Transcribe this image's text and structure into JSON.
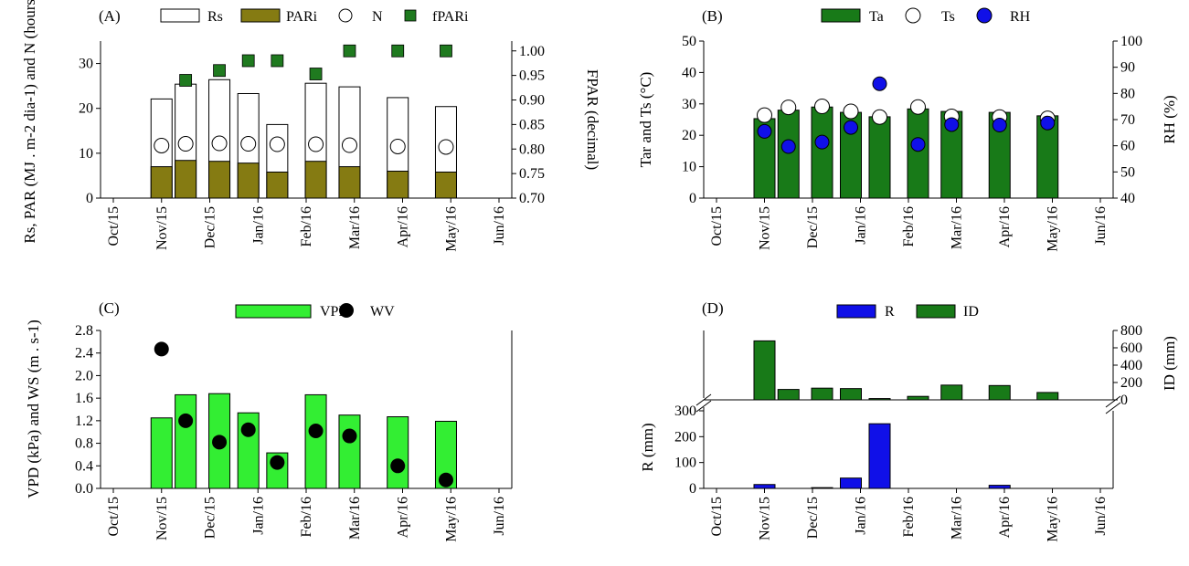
{
  "month_ticks": [
    "Oct/15",
    "Nov/15",
    "Dec/15",
    "Jan/16",
    "Feb/16",
    "Mar/16",
    "Apr/16",
    "May/16",
    "Jun/16"
  ],
  "chart_data": [
    {
      "panel": "(A)",
      "type": "bar",
      "categories": [
        "Oct/15",
        "Nov/15",
        "Dec/15",
        "Jan/16",
        "Feb/16",
        "Mar/16",
        "Apr/16",
        "May/16",
        "Jun/16"
      ],
      "ylabel_left": "Rs, PAR (MJ . m-2 dia-1) and N (hours)",
      "ylabel_right": "FPAR (decimal)",
      "ylim_left": [
        0,
        35
      ],
      "yticks_left": [
        "0",
        "10",
        "20",
        "30"
      ],
      "ylim_right": [
        0.7,
        1.02
      ],
      "yticks_right": [
        "0.70",
        "0.75",
        "0.80",
        "0.85",
        "0.90",
        "0.95",
        "1.00"
      ],
      "legend": [
        "Rs",
        "PARi",
        "N",
        "fPARi"
      ],
      "series": [
        {
          "name": "Rs",
          "kind": "bar",
          "color": "#ffffff",
          "x": [
            1.0,
            1.5,
            2.2,
            2.8,
            3.4,
            4.2,
            4.9,
            5.9,
            6.9
          ],
          "values": [
            22.1,
            25.4,
            26.4,
            23.3,
            16.4,
            25.6,
            24.8,
            22.4,
            20.4
          ]
        },
        {
          "name": "PARi",
          "kind": "bar",
          "color": "#857b12",
          "x": [
            1.0,
            1.5,
            2.2,
            2.8,
            3.4,
            4.2,
            4.9,
            5.9,
            6.9
          ],
          "values": [
            7.0,
            8.4,
            8.2,
            7.8,
            5.8,
            8.2,
            7.0,
            6.0,
            5.8
          ]
        },
        {
          "name": "N",
          "kind": "marker",
          "color": "#ffffff",
          "x": [
            1.0,
            1.5,
            2.2,
            2.8,
            3.4,
            4.2,
            4.9,
            5.9,
            6.9
          ],
          "values": [
            11.7,
            12.1,
            12.2,
            12.1,
            12.0,
            12.0,
            11.8,
            11.5,
            11.4
          ]
        },
        {
          "name": "fPARi",
          "kind": "marker",
          "axis": "right",
          "color": "#1f7a1f",
          "x": [
            1.5,
            2.2,
            2.8,
            3.4,
            4.2,
            4.9,
            5.9,
            6.9
          ],
          "values": [
            0.94,
            0.96,
            0.98,
            0.98,
            0.953,
            1.0,
            1.0,
            1.0
          ]
        }
      ]
    },
    {
      "panel": "(B)",
      "type": "bar",
      "categories": [
        "Oct/15",
        "Nov/15",
        "Dec/15",
        "Jan/16",
        "Feb/16",
        "Mar/16",
        "Apr/16",
        "May/16",
        "Jun/16"
      ],
      "ylabel_left": "Tar and Ts (°C)",
      "ylabel_right": "RH (%)",
      "ylim_left": [
        0,
        50
      ],
      "yticks_left": [
        "0",
        "10",
        "20",
        "30",
        "40",
        "50"
      ],
      "ylim_right": [
        40,
        100
      ],
      "yticks_right": [
        "40",
        "50",
        "60",
        "70",
        "80",
        "90",
        "100"
      ],
      "legend": [
        "Ta",
        "Ts",
        "RH"
      ],
      "series": [
        {
          "name": "Ta",
          "kind": "bar",
          "color": "#187a18",
          "x": [
            1.0,
            1.5,
            2.2,
            2.8,
            3.4,
            4.2,
            4.9,
            5.9,
            6.9
          ],
          "values": [
            25.3,
            28.0,
            29.0,
            27.3,
            25.9,
            28.4,
            27.6,
            27.3,
            26.2
          ]
        },
        {
          "name": "Ts",
          "kind": "marker",
          "color": "#ffffff",
          "x": [
            1.0,
            1.5,
            2.2,
            2.8,
            3.4,
            4.2,
            4.9,
            5.9,
            6.9
          ],
          "values": [
            26.4,
            28.9,
            29.2,
            27.6,
            25.8,
            29.0,
            26.0,
            25.8,
            25.4
          ]
        },
        {
          "name": "RH",
          "kind": "marker",
          "axis": "right",
          "color": "#1010e8",
          "x": [
            1.0,
            1.5,
            2.2,
            2.8,
            3.4,
            4.2,
            4.9,
            5.9,
            6.9
          ],
          "values": [
            65.5,
            59.7,
            61.4,
            67.0,
            83.7,
            60.5,
            68.1,
            67.9,
            68.7
          ]
        }
      ]
    },
    {
      "panel": "(C)",
      "type": "bar",
      "categories": [
        "Oct/15",
        "Nov/15",
        "Dec/15",
        "Jan/16",
        "Feb/16",
        "Mar/16",
        "Apr/16",
        "May/16",
        "Jun/16"
      ],
      "ylabel_left": "VPD (kPa) and WS (m . s-1)",
      "ylim_left": [
        0,
        2.8
      ],
      "yticks_left": [
        "0.0",
        "0.4",
        "0.8",
        "1.2",
        "1.6",
        "2.0",
        "2.4",
        "2.8"
      ],
      "legend": [
        "VPD",
        "WV"
      ],
      "series": [
        {
          "name": "VPD",
          "kind": "bar",
          "color": "#33ee33",
          "x": [
            1.0,
            1.5,
            2.2,
            2.8,
            3.4,
            4.2,
            4.9,
            5.9,
            6.9
          ],
          "values": [
            1.25,
            1.66,
            1.68,
            1.34,
            0.63,
            1.66,
            1.3,
            1.27,
            1.19
          ]
        },
        {
          "name": "WV",
          "kind": "marker",
          "color": "#000000",
          "x": [
            1.0,
            1.5,
            2.2,
            2.8,
            3.4,
            4.2,
            4.9,
            5.9,
            6.9
          ],
          "values": [
            2.47,
            1.2,
            0.82,
            1.04,
            0.46,
            1.02,
            0.93,
            0.4,
            0.15
          ]
        }
      ]
    },
    {
      "panel": "(D)",
      "type": "bar",
      "categories": [
        "Oct/15",
        "Nov/15",
        "Dec/15",
        "Jan/16",
        "Feb/16",
        "Mar/16",
        "Apr/16",
        "May/16",
        "Jun/16"
      ],
      "ylabel_left": "R (mm)",
      "ylabel_right": "ID (mm)",
      "ylim_lower": [
        0,
        300
      ],
      "yticks_lower": [
        "0",
        "100",
        "200",
        "300"
      ],
      "ylim_upper": [
        0,
        800
      ],
      "yticks_upper": [
        "0",
        "200",
        "400",
        "600",
        "800"
      ],
      "legend": [
        "R",
        "ID"
      ],
      "series": [
        {
          "name": "ID",
          "kind": "bar",
          "color": "#187a18",
          "x": [
            1.0,
            1.5,
            2.2,
            2.8,
            3.4,
            4.2,
            4.9,
            5.9,
            6.9
          ],
          "values": [
            680,
            120,
            135,
            130,
            15,
            40,
            170,
            165,
            85
          ]
        },
        {
          "name": "R",
          "kind": "bar",
          "color": "#1010e8",
          "x": [
            1.0,
            1.5,
            2.2,
            2.8,
            3.4,
            4.2,
            4.9,
            5.9,
            6.9
          ],
          "values": [
            15,
            0,
            3,
            40,
            250,
            0,
            0,
            12,
            0
          ]
        }
      ]
    }
  ]
}
